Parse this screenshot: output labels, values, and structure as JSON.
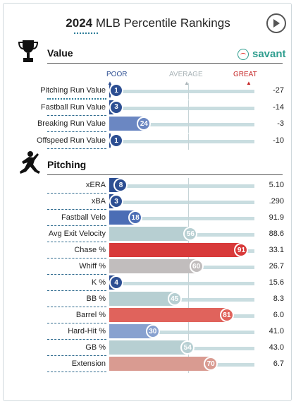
{
  "header": {
    "year": "2024",
    "title_rest": " MLB Percentile Rankings"
  },
  "brand": {
    "name": "savant",
    "color": "#2f9e8f"
  },
  "scale": {
    "poor": "POOR",
    "average": "AVERAGE",
    "great": "GREAT"
  },
  "sections": {
    "value": {
      "label": "Value",
      "rows": [
        {
          "metric": "Pitching Run Value",
          "percentile": 1,
          "value": "-27",
          "color": "#2c4e92"
        },
        {
          "metric": "Fastball Run Value",
          "percentile": 3,
          "value": "-14",
          "color": "#2c4e92"
        },
        {
          "metric": "Breaking Run Value",
          "percentile": 24,
          "value": "-3",
          "color": "#6b87c2"
        },
        {
          "metric": "Offspeed Run Value",
          "percentile": 1,
          "value": "-10",
          "color": "#2c4e92"
        }
      ]
    },
    "pitching": {
      "label": "Pitching",
      "rows": [
        {
          "metric": "xERA",
          "percentile": 8,
          "value": "5.10",
          "color": "#2c4e92"
        },
        {
          "metric": "xBA",
          "percentile": 3,
          "value": ".290",
          "color": "#2c4e92"
        },
        {
          "metric": "Fastball Velo",
          "percentile": 18,
          "value": "91.9",
          "color": "#4b6db5"
        },
        {
          "metric": "Avg Exit Velocity",
          "percentile": 56,
          "value": "88.6",
          "color": "#b7cfd2"
        },
        {
          "metric": "Chase %",
          "percentile": 91,
          "value": "33.1",
          "color": "#d83a3a"
        },
        {
          "metric": "Whiff %",
          "percentile": 60,
          "value": "26.7",
          "color": "#c1bdbd"
        },
        {
          "metric": "K %",
          "percentile": 4,
          "value": "15.6",
          "color": "#2c4e92"
        },
        {
          "metric": "BB %",
          "percentile": 45,
          "value": "8.3",
          "color": "#b7cfd2"
        },
        {
          "metric": "Barrel %",
          "percentile": 81,
          "value": "6.0",
          "color": "#e0635c"
        },
        {
          "metric": "Hard-Hit %",
          "percentile": 30,
          "value": "41.0",
          "color": "#88a1cf"
        },
        {
          "metric": "GB %",
          "percentile": 54,
          "value": "43.0",
          "color": "#b7cfd2"
        },
        {
          "metric": "Extension",
          "percentile": 70,
          "value": "6.7",
          "color": "#d99b91"
        }
      ]
    }
  }
}
